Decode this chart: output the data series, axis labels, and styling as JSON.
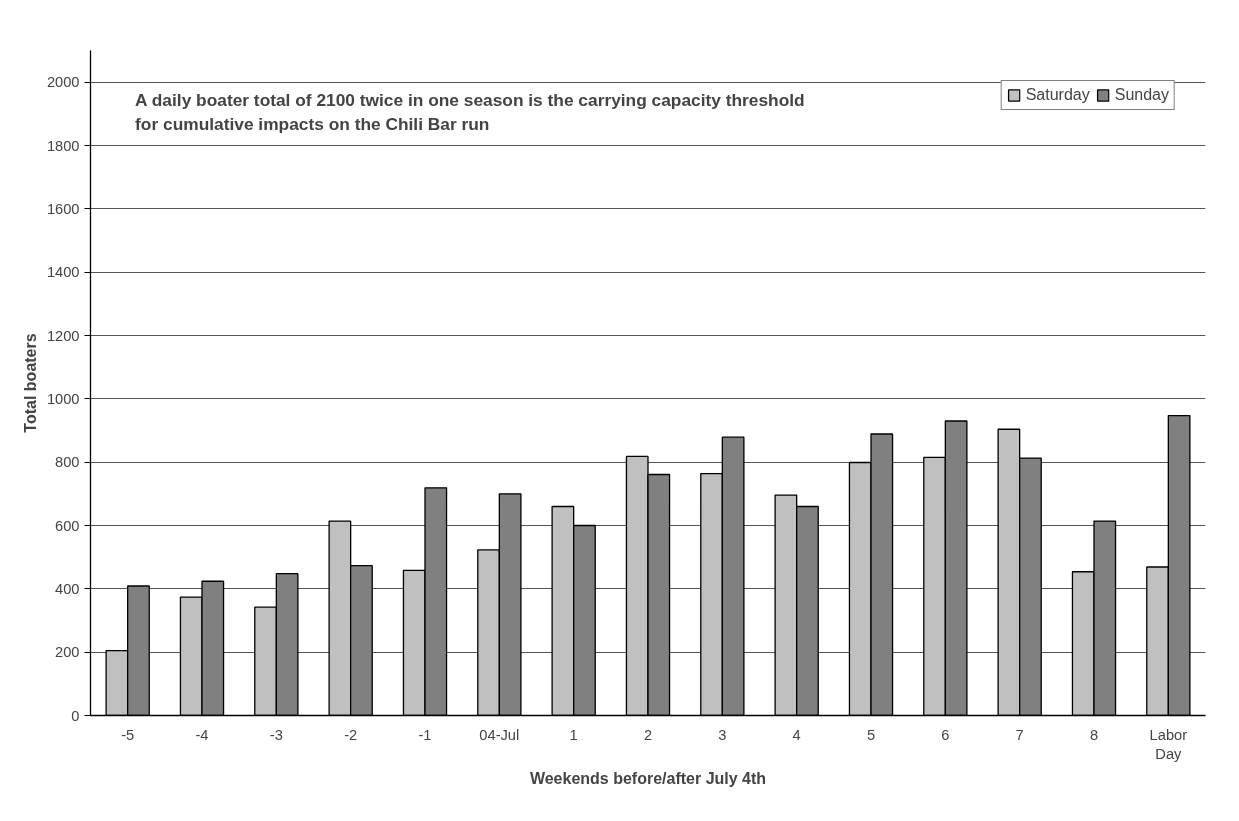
{
  "chart_data": {
    "type": "bar",
    "xlabel": "Weekends before/after July 4th",
    "ylabel": "Total boaters",
    "annotations": [
      "A daily boater total of 2100 twice in one season is the carrying capacity threshold for cumulative impacts on the Chili Bar run"
    ],
    "categories": [
      "-5",
      "-4",
      "-3",
      "-2",
      "-1",
      "04-Jul",
      "1",
      "2",
      "3",
      "4",
      "5",
      "6",
      "7",
      "8",
      "Labor Day"
    ],
    "series": [
      {
        "name": "Saturday",
        "color": "#c0c0c0",
        "values": [
          205,
          374,
          342,
          614,
          458,
          523,
          660,
          818,
          764,
          696,
          799,
          815,
          904,
          454,
          469
        ]
      },
      {
        "name": "Sunday",
        "color": "#808080",
        "values": [
          409,
          424,
          448,
          473,
          719,
          700,
          600,
          761,
          879,
          660,
          889,
          930,
          813,
          614,
          947
        ]
      }
    ],
    "ylim": [
      0,
      2100
    ],
    "yticks": [
      0,
      200,
      400,
      600,
      800,
      1000,
      1200,
      1400,
      1600,
      1800,
      2000
    ],
    "grid": "y",
    "legend": "top right"
  }
}
